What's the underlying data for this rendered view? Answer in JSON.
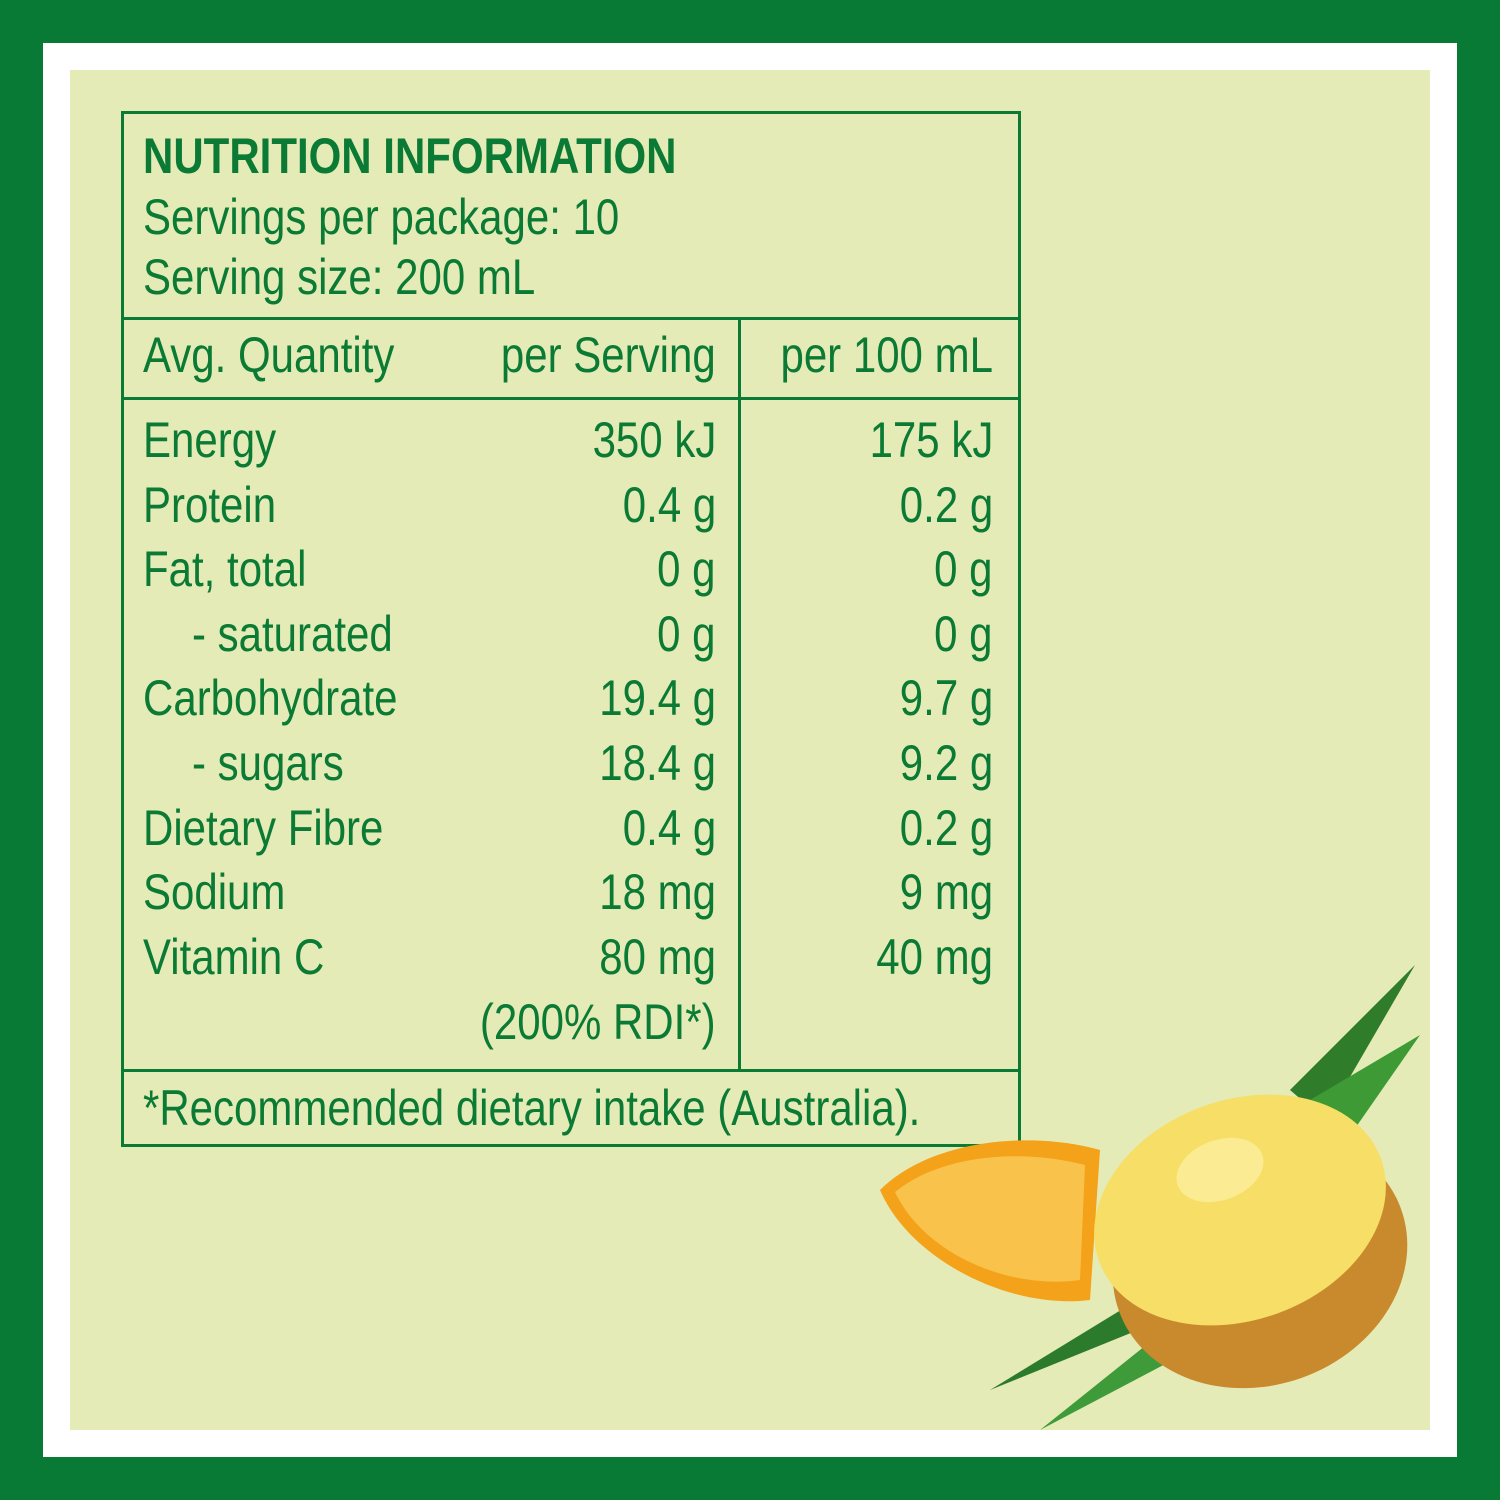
{
  "colors": {
    "brand_green": "#097a35",
    "panel": "#e4ebb6",
    "text": "#0b7a35"
  },
  "title": "NUTRITION INFORMATION",
  "servings_per_package": "Servings per package: 10",
  "serving_size": "Serving size: 200 mL",
  "columns": {
    "quantity": "Avg. Quantity",
    "per_serving": "per Serving",
    "per_100": "per 100 mL"
  },
  "rows": [
    {
      "label": "Energy",
      "per_serving": "350 kJ",
      "per_100": "175 kJ"
    },
    {
      "label": "Protein",
      "per_serving": "0.4 g",
      "per_100": "0.2 g"
    },
    {
      "label": "Fat, total",
      "per_serving": "0 g",
      "per_100": "0 g"
    },
    {
      "label": "- saturated",
      "per_serving": "0 g",
      "per_100": "0 g"
    },
    {
      "label": "Carbohydrate",
      "per_serving": "19.4 g",
      "per_100": "9.7 g"
    },
    {
      "label": "- sugars",
      "per_serving": "18.4 g",
      "per_100": "9.2 g"
    },
    {
      "label": "Dietary Fibre",
      "per_serving": "0.4 g",
      "per_100": "0.2 g"
    },
    {
      "label": "Sodium",
      "per_serving": "18 mg",
      "per_100": "9 mg"
    },
    {
      "label": "Vitamin C",
      "per_serving": "80 mg",
      "per_100": "40 mg"
    }
  ],
  "rdi_note": "(200% RDI*)",
  "footnote": "*Recommended dietary intake (Australia).",
  "image": "pineapple-and-orange-illustration"
}
